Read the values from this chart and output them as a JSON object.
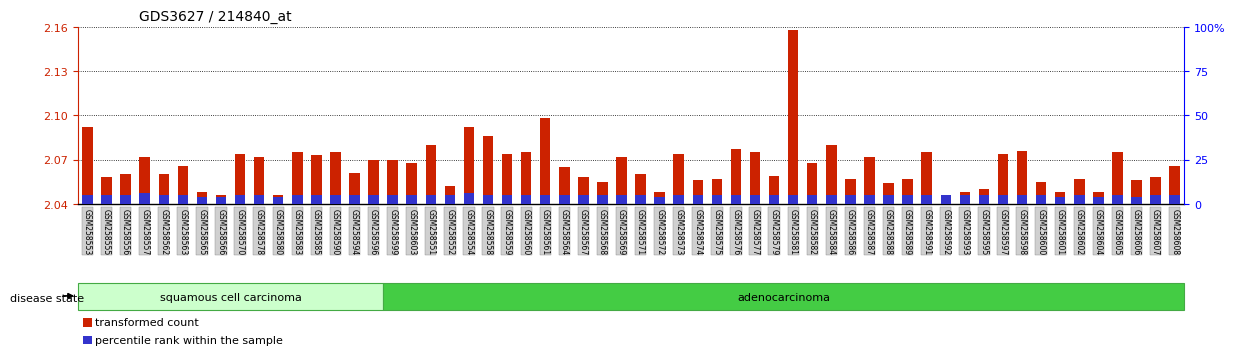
{
  "title": "GDS3627 / 214840_at",
  "ylim_left": [
    2.04,
    2.16
  ],
  "ylim_right": [
    0,
    100
  ],
  "yticks_left": [
    2.04,
    2.07,
    2.1,
    2.13,
    2.16
  ],
  "yticks_right": [
    0,
    25,
    50,
    75,
    100
  ],
  "ytick_labels_right": [
    "0",
    "25",
    "50",
    "75",
    "100%"
  ],
  "bar_color_red": "#cc2200",
  "bar_color_blue": "#3333cc",
  "groups": [
    {
      "label": "squamous cell carcinoma",
      "color": "#ccffcc",
      "border": "#44aa44",
      "start": 0,
      "end": 16
    },
    {
      "label": "adenocarcinoma",
      "color": "#44cc44",
      "border": "#44aa44",
      "start": 16,
      "end": 58
    }
  ],
  "disease_state_label": "disease state",
  "legend_items": [
    {
      "label": "transformed count",
      "color": "#cc2200"
    },
    {
      "label": "percentile rank within the sample",
      "color": "#3333cc"
    }
  ],
  "samples": [
    "GSM258553",
    "GSM258555",
    "GSM258556",
    "GSM258557",
    "GSM258562",
    "GSM258563",
    "GSM258565",
    "GSM258566",
    "GSM258570",
    "GSM258578",
    "GSM258580",
    "GSM258583",
    "GSM258585",
    "GSM258590",
    "GSM258594",
    "GSM258596",
    "GSM258599",
    "GSM258603",
    "GSM258551",
    "GSM258552",
    "GSM258554",
    "GSM258558",
    "GSM258559",
    "GSM258560",
    "GSM258561",
    "GSM258564",
    "GSM258567",
    "GSM258568",
    "GSM258569",
    "GSM258571",
    "GSM258572",
    "GSM258573",
    "GSM258574",
    "GSM258575",
    "GSM258576",
    "GSM258577",
    "GSM258579",
    "GSM258581",
    "GSM258582",
    "GSM258584",
    "GSM258586",
    "GSM258587",
    "GSM258588",
    "GSM258589",
    "GSM258591",
    "GSM258592",
    "GSM258593",
    "GSM258595",
    "GSM258597",
    "GSM258598",
    "GSM258600",
    "GSM258601",
    "GSM258602",
    "GSM258604",
    "GSM258605",
    "GSM258606",
    "GSM258607",
    "GSM258608"
  ],
  "red_values": [
    2.092,
    2.058,
    2.06,
    2.072,
    2.06,
    2.066,
    2.048,
    2.046,
    2.074,
    2.072,
    2.046,
    2.075,
    2.073,
    2.075,
    2.061,
    2.07,
    2.07,
    2.068,
    2.08,
    2.052,
    2.092,
    2.086,
    2.074,
    2.075,
    2.098,
    2.065,
    2.058,
    2.055,
    2.072,
    2.06,
    2.048,
    2.074,
    2.056,
    2.057,
    2.077,
    2.075,
    2.059,
    2.158,
    2.068,
    2.08,
    2.057,
    2.072,
    2.054,
    2.057,
    2.075,
    2.046,
    2.048,
    2.05,
    2.074,
    2.076,
    2.055,
    2.048,
    2.057,
    2.048,
    2.075,
    2.056,
    2.058,
    2.066
  ],
  "blue_values": [
    5,
    5,
    5,
    6,
    5,
    5,
    4,
    4,
    5,
    5,
    4,
    5,
    5,
    5,
    5,
    5,
    5,
    5,
    5,
    5,
    6,
    5,
    5,
    5,
    5,
    5,
    5,
    5,
    5,
    5,
    4,
    5,
    5,
    5,
    5,
    5,
    5,
    5,
    5,
    5,
    5,
    5,
    5,
    5,
    5,
    5,
    5,
    5,
    5,
    5,
    5,
    4,
    5,
    4,
    5,
    4,
    5,
    5
  ]
}
